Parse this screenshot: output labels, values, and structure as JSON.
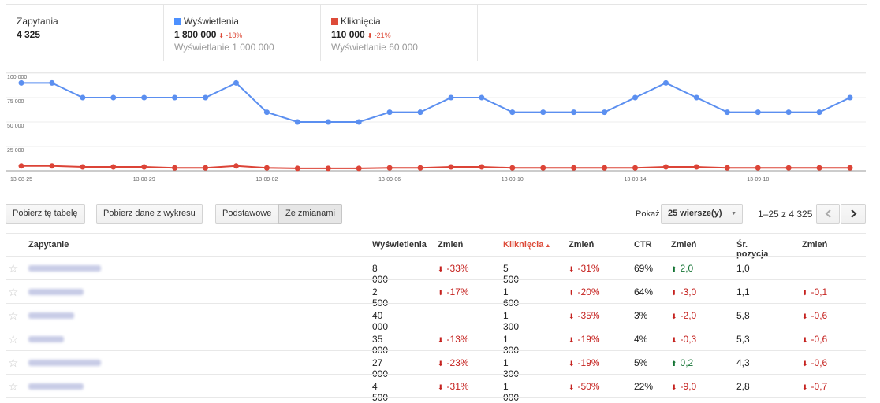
{
  "summary": [
    {
      "label": "Zapytania",
      "value": "4 325"
    },
    {
      "label": "Wyświetlenia",
      "value": "1 800 000",
      "change": "-18%",
      "sub": "Wyświetlanie 1 000 000",
      "color": "#4d90fe"
    },
    {
      "label": "Kliknięcia",
      "value": "110 000",
      "change": "-21%",
      "sub": "Wyświetlanie 60 000",
      "color": "#dd4b39"
    }
  ],
  "chart_data": {
    "type": "line",
    "x": [
      "13-08-25",
      null,
      null,
      null,
      "13-08-29",
      null,
      null,
      null,
      "13-09-02",
      null,
      null,
      null,
      "13-09-06",
      null,
      null,
      null,
      "13-09-10",
      null,
      null,
      null,
      "13-09-14",
      null,
      null,
      null,
      "13-09-18",
      null,
      null,
      null
    ],
    "series": [
      {
        "name": "Wyświetlenia",
        "color": "#5b8ff0",
        "values": [
          90000,
          90000,
          75000,
          75000,
          75000,
          75000,
          75000,
          90000,
          60000,
          50000,
          50000,
          50000,
          60000,
          60000,
          75000,
          75000,
          60000,
          60000,
          60000,
          60000,
          75000,
          90000,
          75000,
          60000,
          60000,
          60000,
          60000,
          75000
        ]
      },
      {
        "name": "Kliknięcia",
        "color": "#dc4437",
        "values": [
          5000,
          5000,
          4000,
          4000,
          4000,
          3000,
          3000,
          5000,
          3000,
          2500,
          2500,
          2500,
          3000,
          3000,
          4000,
          4000,
          3000,
          3000,
          3000,
          3000,
          3000,
          4000,
          4000,
          3000,
          3000,
          3000,
          3000,
          3000
        ]
      }
    ],
    "ylim": [
      0,
      100000
    ],
    "yticks": [
      {
        "value": 25000,
        "label": "25 000"
      },
      {
        "value": 50000,
        "label": "50 000"
      },
      {
        "value": 75000,
        "label": "75 000"
      },
      {
        "value": 100000,
        "label": "100 000"
      }
    ],
    "grid": true
  },
  "toolbar": {
    "download_table": "Pobierz tę tabelę",
    "download_chart": "Pobierz dane z wykresu",
    "basic": "Podstawowe",
    "with_changes": "Ze zmianami",
    "show": "Pokaż",
    "rows_per_page": "25 wiersze(y)",
    "range": "1–25 z 4 325"
  },
  "table": {
    "columns": [
      "Zapytanie",
      "Wyświetlenia",
      "Zmień",
      "Kliknięcia",
      "Zmień",
      "CTR",
      "Zmień",
      "Śr. pozycja",
      "Zmień"
    ],
    "rows": [
      [
        "8 000",
        "-33%",
        "5 500",
        "-31%",
        "69%",
        "2,0",
        "1,0",
        null
      ],
      [
        "2 500",
        "-17%",
        "1 600",
        "-20%",
        "64%",
        "-3,0",
        "1,1",
        "-0,1"
      ],
      [
        "40 000",
        null,
        "1 300",
        "-35%",
        "3%",
        "-2,0",
        "5,8",
        "-0,6"
      ],
      [
        "35 000",
        "-13%",
        "1 300",
        "-19%",
        "4%",
        "-0,3",
        "5,3",
        "-0,6"
      ],
      [
        "27 000",
        "-23%",
        "1 300",
        "-19%",
        "5%",
        "0,2",
        "4,3",
        "-0,6"
      ],
      [
        "4 500",
        "-31%",
        "1 000",
        "-50%",
        "22%",
        "-9,0",
        "2,8",
        "-0,7"
      ]
    ]
  }
}
